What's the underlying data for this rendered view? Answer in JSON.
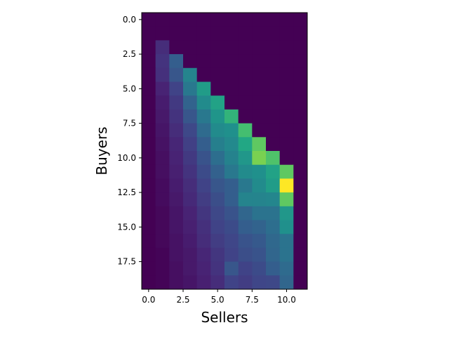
{
  "chart_data": {
    "type": "heatmap",
    "xlabel": "Sellers",
    "ylabel": "Buyers",
    "colormap": "viridis",
    "origin": "upper",
    "x_extent": [
      -0.5,
      11.5
    ],
    "y_extent": [
      19.5,
      -0.5
    ],
    "x_ticks": [
      0,
      2.5,
      5,
      7.5,
      10
    ],
    "x_tick_labels": [
      "0.0",
      "2.5",
      "5.0",
      "7.5",
      "10.0"
    ],
    "y_ticks": [
      0,
      2.5,
      5,
      7.5,
      10,
      12.5,
      15,
      17.5
    ],
    "y_tick_labels": [
      "0.0",
      "2.5",
      "5.0",
      "7.5",
      "10.0",
      "12.5",
      "15.0",
      "17.5"
    ],
    "vmin": 0,
    "vmax": 1,
    "grid": false,
    "values": [
      [
        0.0,
        0.0,
        0.0,
        0.0,
        0.0,
        0.0,
        0.0,
        0.0,
        0.0,
        0.0,
        0.0,
        0.0
      ],
      [
        0.0,
        0.0,
        0.0,
        0.0,
        0.0,
        0.0,
        0.0,
        0.0,
        0.0,
        0.0,
        0.0,
        0.0
      ],
      [
        0.0,
        0.13,
        0.0,
        0.0,
        0.0,
        0.0,
        0.0,
        0.0,
        0.0,
        0.0,
        0.0,
        0.0
      ],
      [
        0.0,
        0.15,
        0.3,
        0.0,
        0.0,
        0.0,
        0.0,
        0.0,
        0.0,
        0.0,
        0.0,
        0.0
      ],
      [
        0.0,
        0.14,
        0.27,
        0.45,
        0.0,
        0.0,
        0.0,
        0.0,
        0.0,
        0.0,
        0.0,
        0.0
      ],
      [
        0.0,
        0.1,
        0.2,
        0.4,
        0.55,
        0.0,
        0.0,
        0.0,
        0.0,
        0.0,
        0.0,
        0.0
      ],
      [
        0.0,
        0.08,
        0.17,
        0.32,
        0.48,
        0.58,
        0.0,
        0.0,
        0.0,
        0.0,
        0.0,
        0.0
      ],
      [
        0.0,
        0.07,
        0.15,
        0.27,
        0.4,
        0.52,
        0.65,
        0.0,
        0.0,
        0.0,
        0.0,
        0.0
      ],
      [
        0.0,
        0.06,
        0.13,
        0.22,
        0.35,
        0.48,
        0.5,
        0.7,
        0.0,
        0.0,
        0.0,
        0.0
      ],
      [
        0.0,
        0.05,
        0.11,
        0.19,
        0.3,
        0.43,
        0.47,
        0.6,
        0.75,
        0.0,
        0.0,
        0.0
      ],
      [
        0.0,
        0.04,
        0.1,
        0.17,
        0.26,
        0.36,
        0.44,
        0.53,
        0.8,
        0.72,
        0.0,
        0.0
      ],
      [
        0.0,
        0.04,
        0.09,
        0.15,
        0.23,
        0.31,
        0.4,
        0.48,
        0.5,
        0.58,
        0.75,
        0.0
      ],
      [
        0.0,
        0.03,
        0.08,
        0.13,
        0.2,
        0.27,
        0.3,
        0.4,
        0.48,
        0.55,
        1.0,
        0.0
      ],
      [
        0.0,
        0.03,
        0.07,
        0.12,
        0.18,
        0.24,
        0.3,
        0.45,
        0.45,
        0.46,
        0.75,
        0.0
      ],
      [
        0.0,
        0.02,
        0.06,
        0.1,
        0.16,
        0.22,
        0.26,
        0.33,
        0.38,
        0.38,
        0.53,
        0.0
      ],
      [
        0.0,
        0.02,
        0.06,
        0.09,
        0.14,
        0.2,
        0.23,
        0.3,
        0.32,
        0.36,
        0.5,
        0.0
      ],
      [
        0.0,
        0.02,
        0.05,
        0.08,
        0.13,
        0.18,
        0.21,
        0.26,
        0.28,
        0.34,
        0.38,
        0.0
      ],
      [
        0.0,
        0.01,
        0.05,
        0.07,
        0.11,
        0.16,
        0.2,
        0.24,
        0.26,
        0.33,
        0.38,
        0.0
      ],
      [
        0.0,
        0.01,
        0.04,
        0.07,
        0.1,
        0.15,
        0.27,
        0.2,
        0.23,
        0.3,
        0.35,
        0.0
      ],
      [
        0.0,
        0.01,
        0.04,
        0.06,
        0.09,
        0.13,
        0.2,
        0.18,
        0.21,
        0.22,
        0.33,
        0.0
      ]
    ]
  }
}
